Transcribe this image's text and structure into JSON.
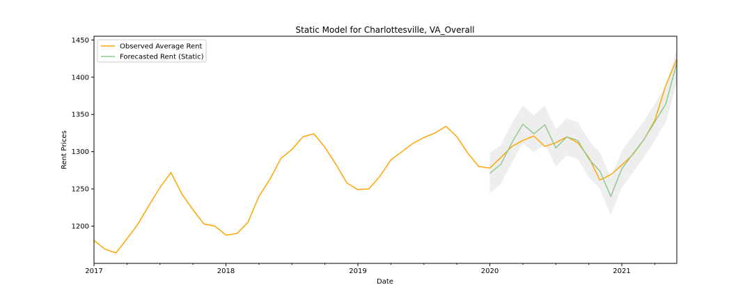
{
  "chart_data": {
    "type": "line",
    "title": "Static Model for Charlottesville, VA_Overall",
    "xlabel": "Date",
    "ylabel": "Rent Prices",
    "xlim": [
      "2017-01",
      "2021-06"
    ],
    "ylim": [
      1150,
      1455
    ],
    "x_ticks": [
      "2017",
      "2018",
      "2019",
      "2020",
      "2021"
    ],
    "y_ticks": [
      1200,
      1250,
      1300,
      1350,
      1400,
      1450
    ],
    "grid": false,
    "legend_position": "upper-left",
    "colors": {
      "observed": "#ffa500",
      "forecast": "#8fc98f",
      "band": "#d9d9d9"
    },
    "series": [
      {
        "name": "Observed Average Rent",
        "x": [
          "2017-01",
          "2017-02",
          "2017-03",
          "2017-04",
          "2017-05",
          "2017-06",
          "2017-07",
          "2017-08",
          "2017-09",
          "2017-10",
          "2017-11",
          "2017-12",
          "2018-01",
          "2018-02",
          "2018-03",
          "2018-04",
          "2018-05",
          "2018-06",
          "2018-07",
          "2018-08",
          "2018-09",
          "2018-10",
          "2018-11",
          "2018-12",
          "2019-01",
          "2019-02",
          "2019-03",
          "2019-04",
          "2019-05",
          "2019-06",
          "2019-07",
          "2019-08",
          "2019-09",
          "2019-10",
          "2019-11",
          "2019-12",
          "2020-01",
          "2020-02",
          "2020-03",
          "2020-04",
          "2020-05",
          "2020-06",
          "2020-07",
          "2020-08",
          "2020-09",
          "2020-10",
          "2020-11",
          "2020-12",
          "2021-01",
          "2021-02",
          "2021-03",
          "2021-04",
          "2021-05",
          "2021-06"
        ],
        "values": [
          1181,
          1169,
          1164,
          1183,
          1203,
          1228,
          1252,
          1272,
          1243,
          1222,
          1203,
          1200,
          1188,
          1190,
          1205,
          1240,
          1263,
          1291,
          1303,
          1320,
          1324,
          1306,
          1283,
          1258,
          1249,
          1250,
          1267,
          1289,
          1300,
          1311,
          1319,
          1325,
          1334,
          1320,
          1298,
          1280,
          1278,
          1292,
          1307,
          1315,
          1321,
          1307,
          1312,
          1320,
          1312,
          1292,
          1262,
          1269,
          1282,
          1296,
          1316,
          1342,
          1389,
          1424
        ]
      },
      {
        "name": "Forecasted Rent (Static)",
        "x": [
          "2020-01",
          "2020-02",
          "2020-03",
          "2020-04",
          "2020-05",
          "2020-06",
          "2020-07",
          "2020-08",
          "2020-09",
          "2020-10",
          "2020-11",
          "2020-12",
          "2021-01",
          "2021-02",
          "2021-03",
          "2021-04",
          "2021-05",
          "2021-06"
        ],
        "values": [
          1271,
          1283,
          1312,
          1337,
          1324,
          1336,
          1305,
          1320,
          1315,
          1290,
          1274,
          1240,
          1277,
          1297,
          1316,
          1340,
          1364,
          1419
        ],
        "lower": [
          1244,
          1257,
          1285,
          1311,
          1299,
          1310,
          1280,
          1295,
          1290,
          1265,
          1250,
          1215,
          1252,
          1272,
          1292,
          1315,
          1340,
          1392
        ],
        "upper": [
          1298,
          1309,
          1338,
          1362,
          1349,
          1362,
          1330,
          1345,
          1340,
          1315,
          1299,
          1265,
          1301,
          1322,
          1341,
          1364,
          1389,
          1436
        ]
      }
    ]
  }
}
